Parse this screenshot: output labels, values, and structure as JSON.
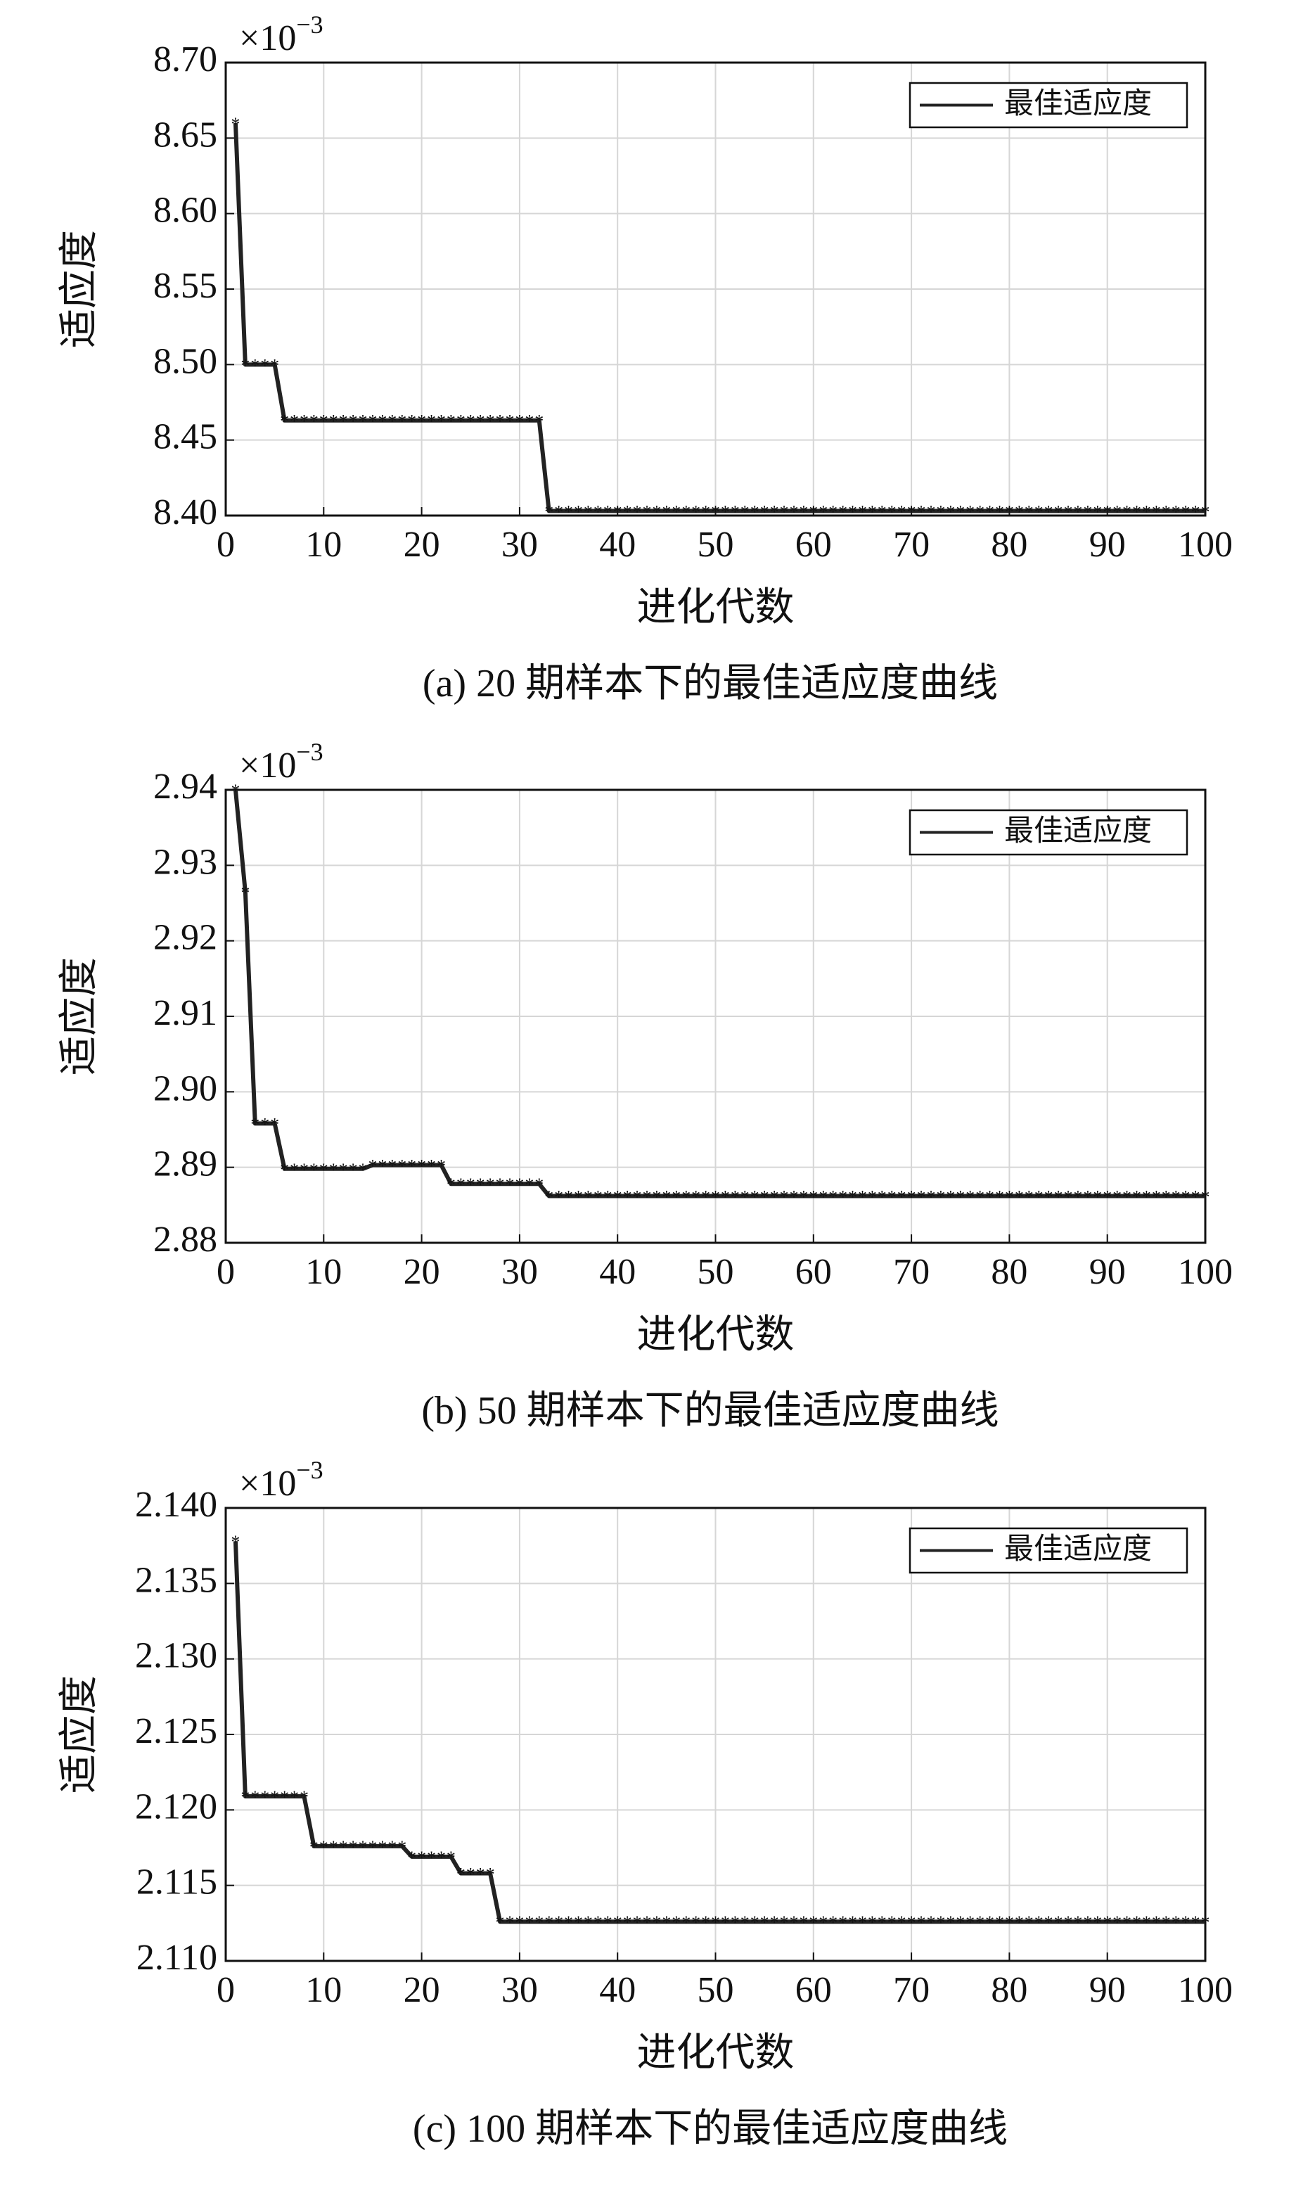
{
  "chart_data": [
    {
      "type": "line",
      "caption": "(a) 20 期样本下的最佳适应度曲线",
      "xlabel": "进化代数",
      "ylabel": "适应度",
      "y_multiplier": {
        "base": "×10",
        "exponent": "−3"
      },
      "x": [
        1,
        2,
        3,
        4,
        5,
        6,
        7,
        8,
        9,
        10,
        11,
        12,
        13,
        14,
        15,
        16,
        17,
        18,
        19,
        20,
        21,
        22,
        23,
        24,
        25,
        26,
        27,
        28,
        29,
        30,
        31,
        32,
        33,
        34,
        35,
        36,
        37,
        38,
        39,
        40,
        41,
        42,
        43,
        44,
        45,
        46,
        47,
        48,
        49,
        50,
        51,
        52,
        53,
        54,
        55,
        56,
        57,
        58,
        59,
        60,
        61,
        62,
        63,
        64,
        65,
        66,
        67,
        68,
        69,
        70,
        71,
        72,
        73,
        74,
        75,
        76,
        77,
        78,
        79,
        80,
        81,
        82,
        83,
        84,
        85,
        86,
        87,
        88,
        89,
        90,
        91,
        92,
        93,
        94,
        95,
        96,
        97,
        98,
        99,
        100
      ],
      "series": [
        {
          "name": "最佳适应度",
          "color": "#222222",
          "values": [
            8.66,
            8.5,
            8.5,
            8.5,
            8.5,
            8.463,
            8.463,
            8.463,
            8.463,
            8.463,
            8.463,
            8.463,
            8.463,
            8.463,
            8.463,
            8.463,
            8.463,
            8.463,
            8.463,
            8.463,
            8.463,
            8.463,
            8.463,
            8.463,
            8.463,
            8.463,
            8.463,
            8.463,
            8.463,
            8.463,
            8.463,
            8.463,
            8.403,
            8.403,
            8.403,
            8.403,
            8.403,
            8.403,
            8.403,
            8.403,
            8.403,
            8.403,
            8.403,
            8.403,
            8.403,
            8.403,
            8.403,
            8.403,
            8.403,
            8.403,
            8.403,
            8.403,
            8.403,
            8.403,
            8.403,
            8.403,
            8.403,
            8.403,
            8.403,
            8.403,
            8.403,
            8.403,
            8.403,
            8.403,
            8.403,
            8.403,
            8.403,
            8.403,
            8.403,
            8.403,
            8.403,
            8.403,
            8.403,
            8.403,
            8.403,
            8.403,
            8.403,
            8.403,
            8.403,
            8.403,
            8.403,
            8.403,
            8.403,
            8.403,
            8.403,
            8.403,
            8.403,
            8.403,
            8.403,
            8.403,
            8.403,
            8.403,
            8.403,
            8.403,
            8.403,
            8.403,
            8.403,
            8.403,
            8.403,
            8.403
          ]
        }
      ],
      "xlim": [
        0,
        100
      ],
      "xticks": [
        0,
        10,
        20,
        30,
        40,
        50,
        60,
        70,
        80,
        90,
        100
      ],
      "ylim": [
        8.4,
        8.7
      ],
      "yticks": [
        {
          "value": 8.4,
          "label": "8.40"
        },
        8.45,
        {
          "value": 8.5,
          "label": "8.50"
        },
        8.55,
        {
          "value": 8.6,
          "label": "8.60"
        },
        8.65,
        {
          "value": 8.7,
          "label": "8.70"
        }
      ],
      "grid": true,
      "legend": "upper right"
    },
    {
      "type": "line",
      "caption": "(b) 50 期样本下的最佳适应度曲线",
      "xlabel": "进化代数",
      "ylabel": "适应度",
      "y_multiplier": {
        "base": "×10",
        "exponent": "−3"
      },
      "x": [
        1,
        2,
        3,
        4,
        5,
        6,
        7,
        8,
        9,
        10,
        11,
        12,
        13,
        14,
        15,
        16,
        17,
        18,
        19,
        20,
        21,
        22,
        23,
        24,
        25,
        26,
        27,
        28,
        29,
        30,
        31,
        32,
        33,
        34,
        35,
        36,
        37,
        38,
        39,
        40,
        41,
        42,
        43,
        44,
        45,
        46,
        47,
        48,
        49,
        50,
        51,
        52,
        53,
        54,
        55,
        56,
        57,
        58,
        59,
        60,
        61,
        62,
        63,
        64,
        65,
        66,
        67,
        68,
        69,
        70,
        71,
        72,
        73,
        74,
        75,
        76,
        77,
        78,
        79,
        80,
        81,
        82,
        83,
        84,
        85,
        86,
        87,
        88,
        89,
        90,
        91,
        92,
        93,
        94,
        95,
        96,
        97,
        98,
        99,
        100
      ],
      "series": [
        {
          "name": "最佳适应度",
          "color": "#222222",
          "values": [
            2.94,
            2.9265,
            2.8958,
            2.8958,
            2.8958,
            2.8898,
            2.8898,
            2.8898,
            2.8898,
            2.8898,
            2.8898,
            2.8898,
            2.8898,
            2.8898,
            2.8903,
            2.8903,
            2.8903,
            2.8903,
            2.8903,
            2.8903,
            2.8903,
            2.8903,
            2.8878,
            2.8878,
            2.8878,
            2.8878,
            2.8878,
            2.8878,
            2.8878,
            2.8878,
            2.8878,
            2.8878,
            2.8862,
            2.8862,
            2.8862,
            2.8862,
            2.8862,
            2.8862,
            2.8862,
            2.8862,
            2.8862,
            2.8862,
            2.8862,
            2.8862,
            2.8862,
            2.8862,
            2.8862,
            2.8862,
            2.8862,
            2.8862,
            2.8862,
            2.8862,
            2.8862,
            2.8862,
            2.8862,
            2.8862,
            2.8862,
            2.8862,
            2.8862,
            2.8862,
            2.8862,
            2.8862,
            2.8862,
            2.8862,
            2.8862,
            2.8862,
            2.8862,
            2.8862,
            2.8862,
            2.8862,
            2.8862,
            2.8862,
            2.8862,
            2.8862,
            2.8862,
            2.8862,
            2.8862,
            2.8862,
            2.8862,
            2.8862,
            2.8862,
            2.8862,
            2.8862,
            2.8862,
            2.8862,
            2.8862,
            2.8862,
            2.8862,
            2.8862,
            2.8862,
            2.8862,
            2.8862,
            2.8862,
            2.8862,
            2.8862,
            2.8862,
            2.8862,
            2.8862,
            2.8862,
            2.8862
          ]
        }
      ],
      "xlim": [
        0,
        100
      ],
      "xticks": [
        0,
        10,
        20,
        30,
        40,
        50,
        60,
        70,
        80,
        90,
        100
      ],
      "ylim": [
        2.88,
        2.94
      ],
      "yticks": [
        2.88,
        2.89,
        {
          "value": 2.9,
          "label": "2.90"
        },
        2.91,
        2.92,
        2.93,
        2.94
      ],
      "grid": true,
      "legend": "upper right"
    },
    {
      "type": "line",
      "caption": "(c) 100 期样本下的最佳适应度曲线",
      "xlabel": "进化代数",
      "ylabel": "适应度",
      "y_multiplier": {
        "base": "×10",
        "exponent": "−3"
      },
      "x": [
        1,
        2,
        3,
        4,
        5,
        6,
        7,
        8,
        9,
        10,
        11,
        12,
        13,
        14,
        15,
        16,
        17,
        18,
        19,
        20,
        21,
        22,
        23,
        24,
        25,
        26,
        27,
        28,
        29,
        30,
        31,
        32,
        33,
        34,
        35,
        36,
        37,
        38,
        39,
        40,
        41,
        42,
        43,
        44,
        45,
        46,
        47,
        48,
        49,
        50,
        51,
        52,
        53,
        54,
        55,
        56,
        57,
        58,
        59,
        60,
        61,
        62,
        63,
        64,
        65,
        66,
        67,
        68,
        69,
        70,
        71,
        72,
        73,
        74,
        75,
        76,
        77,
        78,
        79,
        80,
        81,
        82,
        83,
        84,
        85,
        86,
        87,
        88,
        89,
        90,
        91,
        92,
        93,
        94,
        95,
        96,
        97,
        98,
        99,
        100
      ],
      "series": [
        {
          "name": "最佳适应度",
          "color": "#222222",
          "values": [
            2.1378,
            2.1209,
            2.1209,
            2.1209,
            2.1209,
            2.1209,
            2.1209,
            2.1209,
            2.1176,
            2.1176,
            2.1176,
            2.1176,
            2.1176,
            2.1176,
            2.1176,
            2.1176,
            2.1176,
            2.1176,
            2.1169,
            2.1169,
            2.1169,
            2.1169,
            2.1169,
            2.1158,
            2.1158,
            2.1158,
            2.1158,
            2.1126,
            2.1126,
            2.1126,
            2.1126,
            2.1126,
            2.1126,
            2.1126,
            2.1126,
            2.1126,
            2.1126,
            2.1126,
            2.1126,
            2.1126,
            2.1126,
            2.1126,
            2.1126,
            2.1126,
            2.1126,
            2.1126,
            2.1126,
            2.1126,
            2.1126,
            2.1126,
            2.1126,
            2.1126,
            2.1126,
            2.1126,
            2.1126,
            2.1126,
            2.1126,
            2.1126,
            2.1126,
            2.1126,
            2.1126,
            2.1126,
            2.1126,
            2.1126,
            2.1126,
            2.1126,
            2.1126,
            2.1126,
            2.1126,
            2.1126,
            2.1126,
            2.1126,
            2.1126,
            2.1126,
            2.1126,
            2.1126,
            2.1126,
            2.1126,
            2.1126,
            2.1126,
            2.1126,
            2.1126,
            2.1126,
            2.1126,
            2.1126,
            2.1126,
            2.1126,
            2.1126,
            2.1126,
            2.1126,
            2.1126,
            2.1126,
            2.1126,
            2.1126,
            2.1126,
            2.1126,
            2.1126,
            2.1126,
            2.1126,
            2.1126
          ]
        }
      ],
      "xlim": [
        0,
        100
      ],
      "xticks": [
        0,
        10,
        20,
        30,
        40,
        50,
        60,
        70,
        80,
        90,
        100
      ],
      "ylim": [
        2.11,
        2.14
      ],
      "yticks": [
        {
          "value": 2.11,
          "label": "2.110"
        },
        2.115,
        {
          "value": 2.12,
          "label": "2.120"
        },
        2.125,
        {
          "value": 2.13,
          "label": "2.130"
        },
        2.135,
        {
          "value": 2.14,
          "label": "2.140"
        }
      ],
      "grid": true,
      "legend": "upper right"
    }
  ]
}
